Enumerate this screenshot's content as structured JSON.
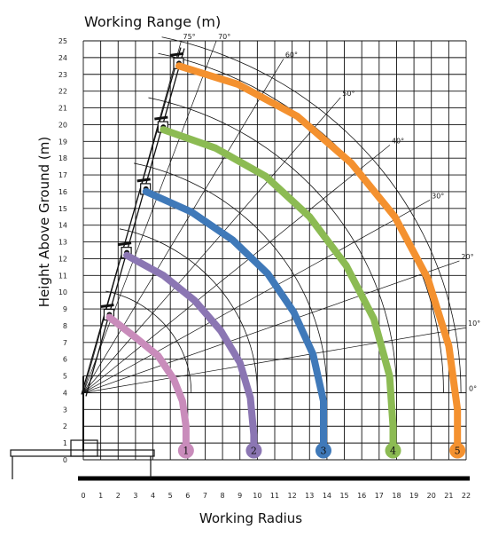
{
  "chart_data": {
    "type": "line",
    "title": "Working Range (m)",
    "xlabel": "Working Radius",
    "ylabel": "Height Above Ground (m)",
    "xlim": [
      0,
      22
    ],
    "ylim": [
      0,
      25
    ],
    "x_ticks": [
      "0",
      "1",
      "2",
      "3",
      "4",
      "5",
      "6",
      "7",
      "8",
      "9",
      "10",
      "11",
      "12",
      "13",
      "14",
      "15",
      "16",
      "17",
      "18",
      "19",
      "20",
      "21",
      "22"
    ],
    "y_ticks": [
      "0",
      "1",
      "2",
      "3",
      "4",
      "5",
      "6",
      "7",
      "8",
      "9",
      "10",
      "11",
      "12",
      "13",
      "14",
      "15",
      "16",
      "17",
      "18",
      "19",
      "20",
      "21",
      "22",
      "23",
      "24",
      "25"
    ],
    "pivot": [
      0,
      4
    ],
    "grid": true,
    "angle_labels": [
      {
        "text": "75°",
        "deg": 75
      },
      {
        "text": "70°",
        "deg": 70
      },
      {
        "text": "60°",
        "deg": 60
      },
      {
        "text": "50°",
        "deg": 50
      },
      {
        "text": "40°",
        "deg": 40
      },
      {
        "text": "30°",
        "deg": 30
      },
      {
        "text": "20°",
        "deg": 20
      },
      {
        "text": "10°",
        "deg": 10
      },
      {
        "text": "0°",
        "deg": 0
      }
    ],
    "series": [
      {
        "label": "1",
        "color": "#c98cbb",
        "points": [
          [
            1.5,
            8.5
          ],
          [
            3.0,
            7.3
          ],
          [
            4.3,
            6.2
          ],
          [
            5.2,
            4.8
          ],
          [
            5.7,
            3.5
          ],
          [
            5.9,
            2.0
          ],
          [
            5.9,
            0.5
          ]
        ]
      },
      {
        "label": "2",
        "color": "#8b76b3",
        "points": [
          [
            2.5,
            12.2
          ],
          [
            4.6,
            11.0
          ],
          [
            6.4,
            9.5
          ],
          [
            7.9,
            7.7
          ],
          [
            9.0,
            5.8
          ],
          [
            9.6,
            3.7
          ],
          [
            9.8,
            1.5
          ],
          [
            9.8,
            0.5
          ]
        ]
      },
      {
        "label": "3",
        "color": "#3f79b9",
        "points": [
          [
            3.6,
            16.0
          ],
          [
            6.2,
            14.8
          ],
          [
            8.6,
            13.1
          ],
          [
            10.6,
            11.1
          ],
          [
            12.1,
            8.8
          ],
          [
            13.2,
            6.3
          ],
          [
            13.8,
            3.5
          ],
          [
            13.8,
            0.5
          ]
        ]
      },
      {
        "label": "4",
        "color": "#8cbb53",
        "points": [
          [
            4.6,
            19.7
          ],
          [
            7.6,
            18.6
          ],
          [
            10.5,
            16.9
          ],
          [
            13.0,
            14.5
          ],
          [
            15.1,
            11.6
          ],
          [
            16.7,
            8.4
          ],
          [
            17.6,
            5.0
          ],
          [
            17.8,
            2.0
          ],
          [
            17.8,
            0.5
          ]
        ]
      },
      {
        "label": "5",
        "color": "#f4912f",
        "points": [
          [
            5.5,
            23.5
          ],
          [
            8.9,
            22.4
          ],
          [
            12.3,
            20.5
          ],
          [
            15.4,
            17.7
          ],
          [
            17.9,
            14.5
          ],
          [
            19.8,
            10.8
          ],
          [
            21.0,
            6.8
          ],
          [
            21.5,
            3.0
          ],
          [
            21.5,
            0.5
          ]
        ]
      }
    ]
  }
}
